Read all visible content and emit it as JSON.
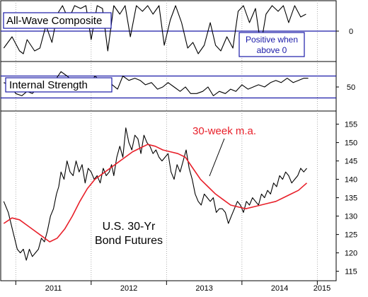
{
  "chart_data": [
    {
      "panel": "top",
      "type": "line",
      "title": "All-Wave Composite",
      "annotation": "Positive when above 0",
      "annotation_lines": [
        "Positive when",
        "above 0"
      ],
      "ytick_labels": [
        "0"
      ],
      "reference_lines": [
        0
      ],
      "ylim": [
        -1,
        1
      ],
      "series": [
        {
          "x": [
            2010.84,
            2010.95,
            2011.05,
            2011.1,
            2011.15,
            2011.25,
            2011.32,
            2011.4,
            2011.48,
            2011.55,
            2011.62,
            2011.7,
            2011.78,
            2011.86,
            2011.93,
            2012.0,
            2012.08,
            2012.15,
            2012.22,
            2012.3,
            2012.38,
            2012.45,
            2012.52,
            2012.6,
            2012.68,
            2012.75,
            2012.82,
            2012.9,
            2012.97,
            2013.05,
            2013.12,
            2013.2,
            2013.28,
            2013.35,
            2013.42,
            2013.5,
            2013.58,
            2013.65,
            2013.72,
            2013.8,
            2013.88,
            2013.95,
            2014.02,
            2014.1,
            2014.18,
            2014.25,
            2014.32,
            2014.4,
            2014.48,
            2014.55,
            2014.62,
            2014.7,
            2014.78,
            2014.85
          ],
          "values": [
            -0.6,
            -0.2,
            -0.7,
            -0.8,
            -0.3,
            -0.7,
            -0.6,
            0.2,
            -0.4,
            0.6,
            0.9,
            0.4,
            0.9,
            0.8,
            0.9,
            -0.3,
            0.9,
            0.8,
            -0.7,
            0.9,
            0.6,
            0.9,
            -0.2,
            0.9,
            0.7,
            0.9,
            0.6,
            0.9,
            -0.5,
            0.4,
            0.9,
            0.3,
            -0.6,
            -0.4,
            -0.8,
            -0.5,
            0.3,
            -0.5,
            -0.7,
            -0.2,
            -0.6,
            0.7,
            0.9,
            0.3,
            0.8,
            -0.5,
            0.6,
            0.9,
            0.7,
            0.9,
            0.3,
            0.9,
            0.5,
            0.6
          ]
        }
      ]
    },
    {
      "panel": "middle",
      "type": "line",
      "title": "Internal Strength",
      "ytick_labels": [
        "50"
      ],
      "reference_lines": [
        55,
        45
      ],
      "ylim": [
        40,
        60
      ],
      "series": [
        {
          "x": [
            2010.84,
            2010.92,
            2011.0,
            2011.08,
            2011.15,
            2011.22,
            2011.3,
            2011.38,
            2011.45,
            2011.52,
            2011.6,
            2011.68,
            2011.75,
            2011.82,
            2011.9,
            2011.98,
            2012.05,
            2012.12,
            2012.2,
            2012.28,
            2012.35,
            2012.42,
            2012.5,
            2012.58,
            2012.65,
            2012.72,
            2012.8,
            2012.88,
            2012.95,
            2013.02,
            2013.1,
            2013.18,
            2013.25,
            2013.32,
            2013.4,
            2013.48,
            2013.55,
            2013.62,
            2013.7,
            2013.78,
            2013.85,
            2013.92,
            2014.0,
            2014.08,
            2014.15,
            2014.22,
            2014.3,
            2014.38,
            2014.45,
            2014.52,
            2014.6,
            2014.68,
            2014.75,
            2014.82,
            2014.88
          ],
          "values": [
            52,
            51,
            47,
            46,
            48,
            47,
            50,
            51,
            54,
            53,
            57,
            55,
            53,
            54,
            52,
            51,
            55,
            53,
            54,
            51,
            49,
            55,
            53,
            54,
            53,
            51,
            52,
            49,
            50,
            52,
            50,
            48,
            50,
            47,
            47,
            48,
            50,
            46,
            48,
            47,
            49,
            48,
            51,
            49,
            50,
            51,
            50,
            52,
            53,
            52,
            54,
            52,
            53,
            54,
            54
          ]
        }
      ]
    },
    {
      "panel": "bottom",
      "type": "line",
      "title": "U.S. 30-Yr Bond Futures",
      "title_lines": [
        "U.S. 30-Yr",
        "Bond Futures"
      ],
      "categories": [
        "2011",
        "2012",
        "2013",
        "2014",
        "2015"
      ],
      "category_x": [
        2011,
        2012,
        2013,
        2014,
        2015
      ],
      "yticks": [
        115,
        120,
        125,
        130,
        135,
        140,
        145,
        150,
        155
      ],
      "ylim": [
        113,
        158
      ],
      "xlim": [
        2010.8,
        2015.25
      ],
      "series": [
        {
          "name": "U.S. 30-Yr Bond Futures",
          "x": [
            2010.84,
            2010.9,
            2010.96,
            2011.02,
            2011.06,
            2011.1,
            2011.14,
            2011.18,
            2011.22,
            2011.26,
            2011.3,
            2011.34,
            2011.38,
            2011.42,
            2011.46,
            2011.5,
            2011.54,
            2011.57,
            2011.6,
            2011.64,
            2011.68,
            2011.72,
            2011.76,
            2011.8,
            2011.84,
            2011.88,
            2011.92,
            2011.96,
            2012.0,
            2012.04,
            2012.08,
            2012.12,
            2012.16,
            2012.2,
            2012.24,
            2012.27,
            2012.3,
            2012.34,
            2012.38,
            2012.42,
            2012.46,
            2012.5,
            2012.54,
            2012.58,
            2012.62,
            2012.66,
            2012.7,
            2012.74,
            2012.78,
            2012.82,
            2012.86,
            2012.9,
            2012.94,
            2012.98,
            2013.02,
            2013.06,
            2013.1,
            2013.14,
            2013.18,
            2013.22,
            2013.26,
            2013.3,
            2013.34,
            2013.38,
            2013.42,
            2013.46,
            2013.5,
            2013.54,
            2013.58,
            2013.62,
            2013.66,
            2013.7,
            2013.74,
            2013.78,
            2013.82,
            2013.86,
            2013.9,
            2013.94,
            2013.98,
            2014.02,
            2014.06,
            2014.1,
            2014.14,
            2014.18,
            2014.22,
            2014.26,
            2014.3,
            2014.34,
            2014.38,
            2014.42,
            2014.46,
            2014.5,
            2014.54,
            2014.58,
            2014.62,
            2014.66,
            2014.7,
            2014.74,
            2014.78,
            2014.82,
            2014.86
          ],
          "values": [
            134,
            131,
            126,
            121,
            120,
            121,
            118,
            121,
            119,
            120,
            121,
            124,
            123,
            126,
            130,
            132,
            136,
            138,
            142,
            140,
            145,
            142,
            141,
            145,
            142,
            144,
            139,
            143,
            142,
            140,
            141,
            139,
            143,
            141,
            142,
            144,
            141,
            146,
            149,
            146,
            154,
            150,
            148,
            152,
            151,
            147,
            152,
            150,
            149,
            147,
            148,
            146,
            145,
            146,
            147,
            142,
            140,
            144,
            142,
            145,
            148,
            143,
            140,
            136,
            134,
            133,
            136,
            135,
            134,
            135,
            131,
            132,
            132,
            131,
            128,
            130,
            132,
            134,
            133,
            131,
            134,
            133,
            135,
            134,
            133,
            136,
            135,
            137,
            136,
            139,
            138,
            141,
            140,
            142,
            141,
            139,
            140,
            141,
            143,
            142,
            143
          ]
        },
        {
          "name": "30-week m.a.",
          "color": "#e8202a",
          "x": [
            2010.84,
            2010.95,
            2011.05,
            2011.15,
            2011.25,
            2011.35,
            2011.45,
            2011.55,
            2011.65,
            2011.75,
            2011.85,
            2011.95,
            2012.05,
            2012.15,
            2012.25,
            2012.35,
            2012.45,
            2012.55,
            2012.65,
            2012.75,
            2012.85,
            2012.95,
            2013.05,
            2013.15,
            2013.25,
            2013.35,
            2013.45,
            2013.55,
            2013.65,
            2013.75,
            2013.85,
            2013.95,
            2014.05,
            2014.15,
            2014.25,
            2014.35,
            2014.45,
            2014.55,
            2014.65,
            2014.75,
            2014.86
          ],
          "values": [
            128,
            129.5,
            129,
            127.5,
            126,
            124.5,
            123,
            124,
            126.5,
            130,
            134,
            137.5,
            140,
            141.5,
            143,
            144.5,
            146,
            147.5,
            148.5,
            149.5,
            149,
            148,
            147.5,
            147,
            146,
            143,
            140,
            138,
            136,
            134.5,
            133,
            132.5,
            132,
            132.5,
            133,
            133.5,
            134,
            135,
            136,
            137,
            139
          ]
        }
      ],
      "annotations": [
        "30-week m.a."
      ]
    }
  ]
}
